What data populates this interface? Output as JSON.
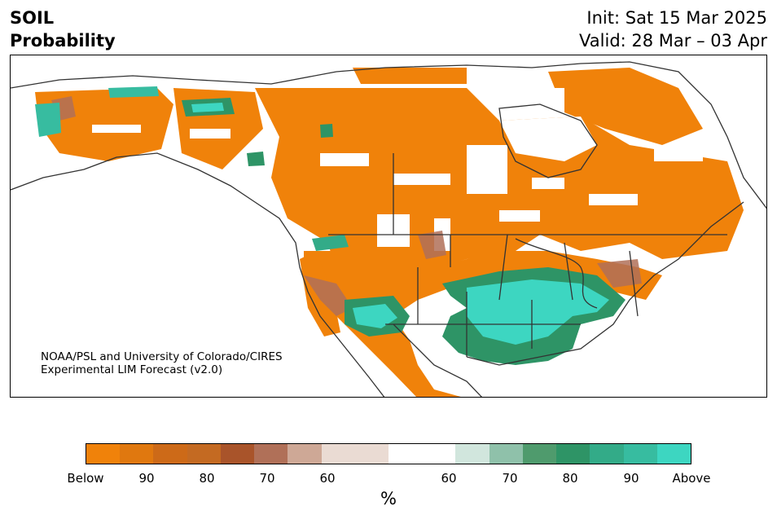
{
  "header": {
    "variable": "SOIL",
    "product": "Probability",
    "init": "Init: Sat 15 Mar 2025",
    "valid": "Valid: 28 Mar – 03 Apr"
  },
  "credit": {
    "line1": "NOAA/PSL and University of Colorado/CIRES",
    "line2": "Experimental LIM Forecast (v2.0)"
  },
  "colorbar": {
    "colors": [
      "#f0820a",
      "#e0780f",
      "#cd6a18",
      "#c46a22",
      "#a9542a",
      "#b07058",
      "#cea896",
      "#eadbd3",
      "#ffffff",
      "#d1e6dd",
      "#8fc1aa",
      "#4f9b6d",
      "#2e9466",
      "#33ab88",
      "#37bca0",
      "#3dd6c1"
    ],
    "tick_labels": [
      "Below",
      "90",
      "80",
      "70",
      "60",
      "60",
      "70",
      "80",
      "90",
      "Above"
    ],
    "unit": "%"
  }
}
